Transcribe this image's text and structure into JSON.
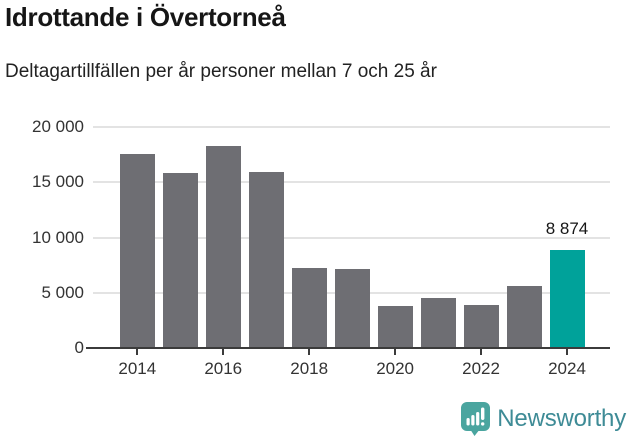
{
  "chart_data": {
    "type": "bar",
    "title": "Idrottande i Övertorneå",
    "subtitle": "Deltagartillfällen per år personer mellan 7 och 25 år",
    "x": [
      "2014",
      "2015",
      "2016",
      "2017",
      "2018",
      "2019",
      "2020",
      "2021",
      "2022",
      "2023",
      "2024"
    ],
    "values": [
      17600,
      15850,
      18250,
      15950,
      7200,
      7150,
      3800,
      4550,
      3900,
      5600,
      8874
    ],
    "highlight_index": 10,
    "value_label": {
      "index": 10,
      "text": "8 874"
    },
    "ylim": [
      0,
      20000
    ],
    "yticks": [
      {
        "value": 0,
        "label": "0"
      },
      {
        "value": 5000,
        "label": "5 000"
      },
      {
        "value": 10000,
        "label": "10 000"
      },
      {
        "value": 15000,
        "label": "15 000"
      },
      {
        "value": 20000,
        "label": "20 000"
      }
    ],
    "xticks": [
      {
        "index": 0,
        "label": "2014"
      },
      {
        "index": 2,
        "label": "2016"
      },
      {
        "index": 4,
        "label": "2018"
      },
      {
        "index": 6,
        "label": "2020"
      },
      {
        "index": 8,
        "label": "2022"
      },
      {
        "index": 10,
        "label": "2024"
      }
    ],
    "grid": true,
    "legend": null,
    "colors": {
      "bar": "#6e6e73",
      "highlight": "#00a29a",
      "gridline": "#e3e3e3",
      "axis": "#3b3b3b",
      "tick_text": "#333333",
      "value_label_text": "#161616"
    }
  },
  "footer": {
    "brand": "Newsworthy",
    "brand_color": "#3e8b96",
    "icon": "newsworthy-bar-chart-speech-bubble",
    "icon_color": "#4aa59f"
  }
}
